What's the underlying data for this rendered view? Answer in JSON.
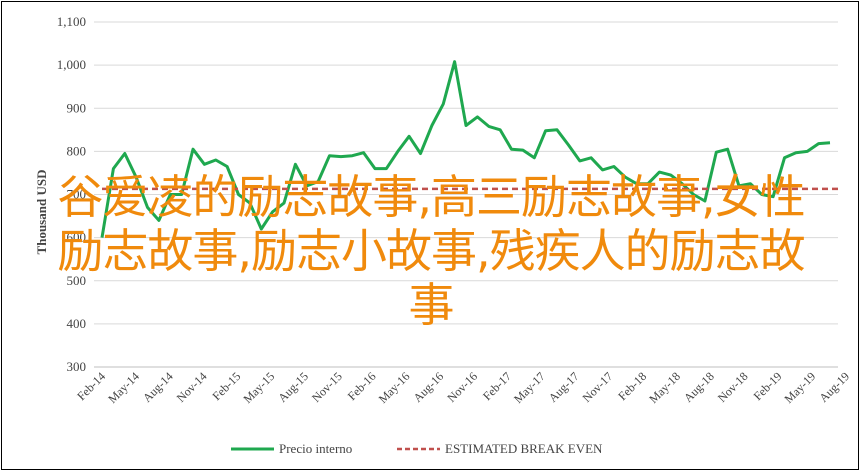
{
  "chart_data": {
    "type": "line",
    "ylabel": "Thousand USD",
    "ylim": [
      300,
      1100
    ],
    "yticks": [
      "300",
      "400",
      "500",
      "600",
      "700",
      "800",
      "900",
      "1,000",
      "1,100"
    ],
    "x_tick_labels": [
      "Feb-14",
      "May-14",
      "Aug-14",
      "Nov-14",
      "Feb-15",
      "May-15",
      "Aug-15",
      "Nov-15",
      "Feb-16",
      "May-16",
      "Aug-16",
      "Nov-16",
      "Feb-17",
      "May-17",
      "Aug-17",
      "Nov-17",
      "Feb-18",
      "May-18",
      "Aug-18",
      "Nov-18",
      "Feb-19",
      "May-19",
      "Aug-19"
    ],
    "grid": true,
    "legend_position": "bottom",
    "series": [
      {
        "name": "Precio interno",
        "color": "#1fa84f",
        "style": "solid",
        "values": [
          600,
          760,
          795,
          740,
          670,
          640,
          700,
          700,
          805,
          770,
          780,
          765,
          700,
          680,
          620,
          660,
          680,
          770,
          720,
          730,
          790,
          788,
          790,
          797,
          760,
          760,
          800,
          835,
          795,
          860,
          910,
          1008,
          860,
          880,
          858,
          850,
          805,
          803,
          785,
          848,
          850,
          815,
          778,
          785,
          757,
          765,
          740,
          725,
          725,
          752,
          745,
          725,
          700,
          685,
          798,
          805,
          720,
          725,
          700,
          695,
          785,
          797,
          800,
          818,
          820
        ]
      },
      {
        "name": "ESTIMATED BREAK EVEN",
        "color": "#c0504d",
        "style": "dashed",
        "values": [
          713,
          713
        ]
      }
    ]
  },
  "overlay_text": {
    "line1": "谷爱凌的励志故事,高三励志故事,女性",
    "line2": "励志故事,励志小故事,残疾人的励志故",
    "line3": "事"
  }
}
